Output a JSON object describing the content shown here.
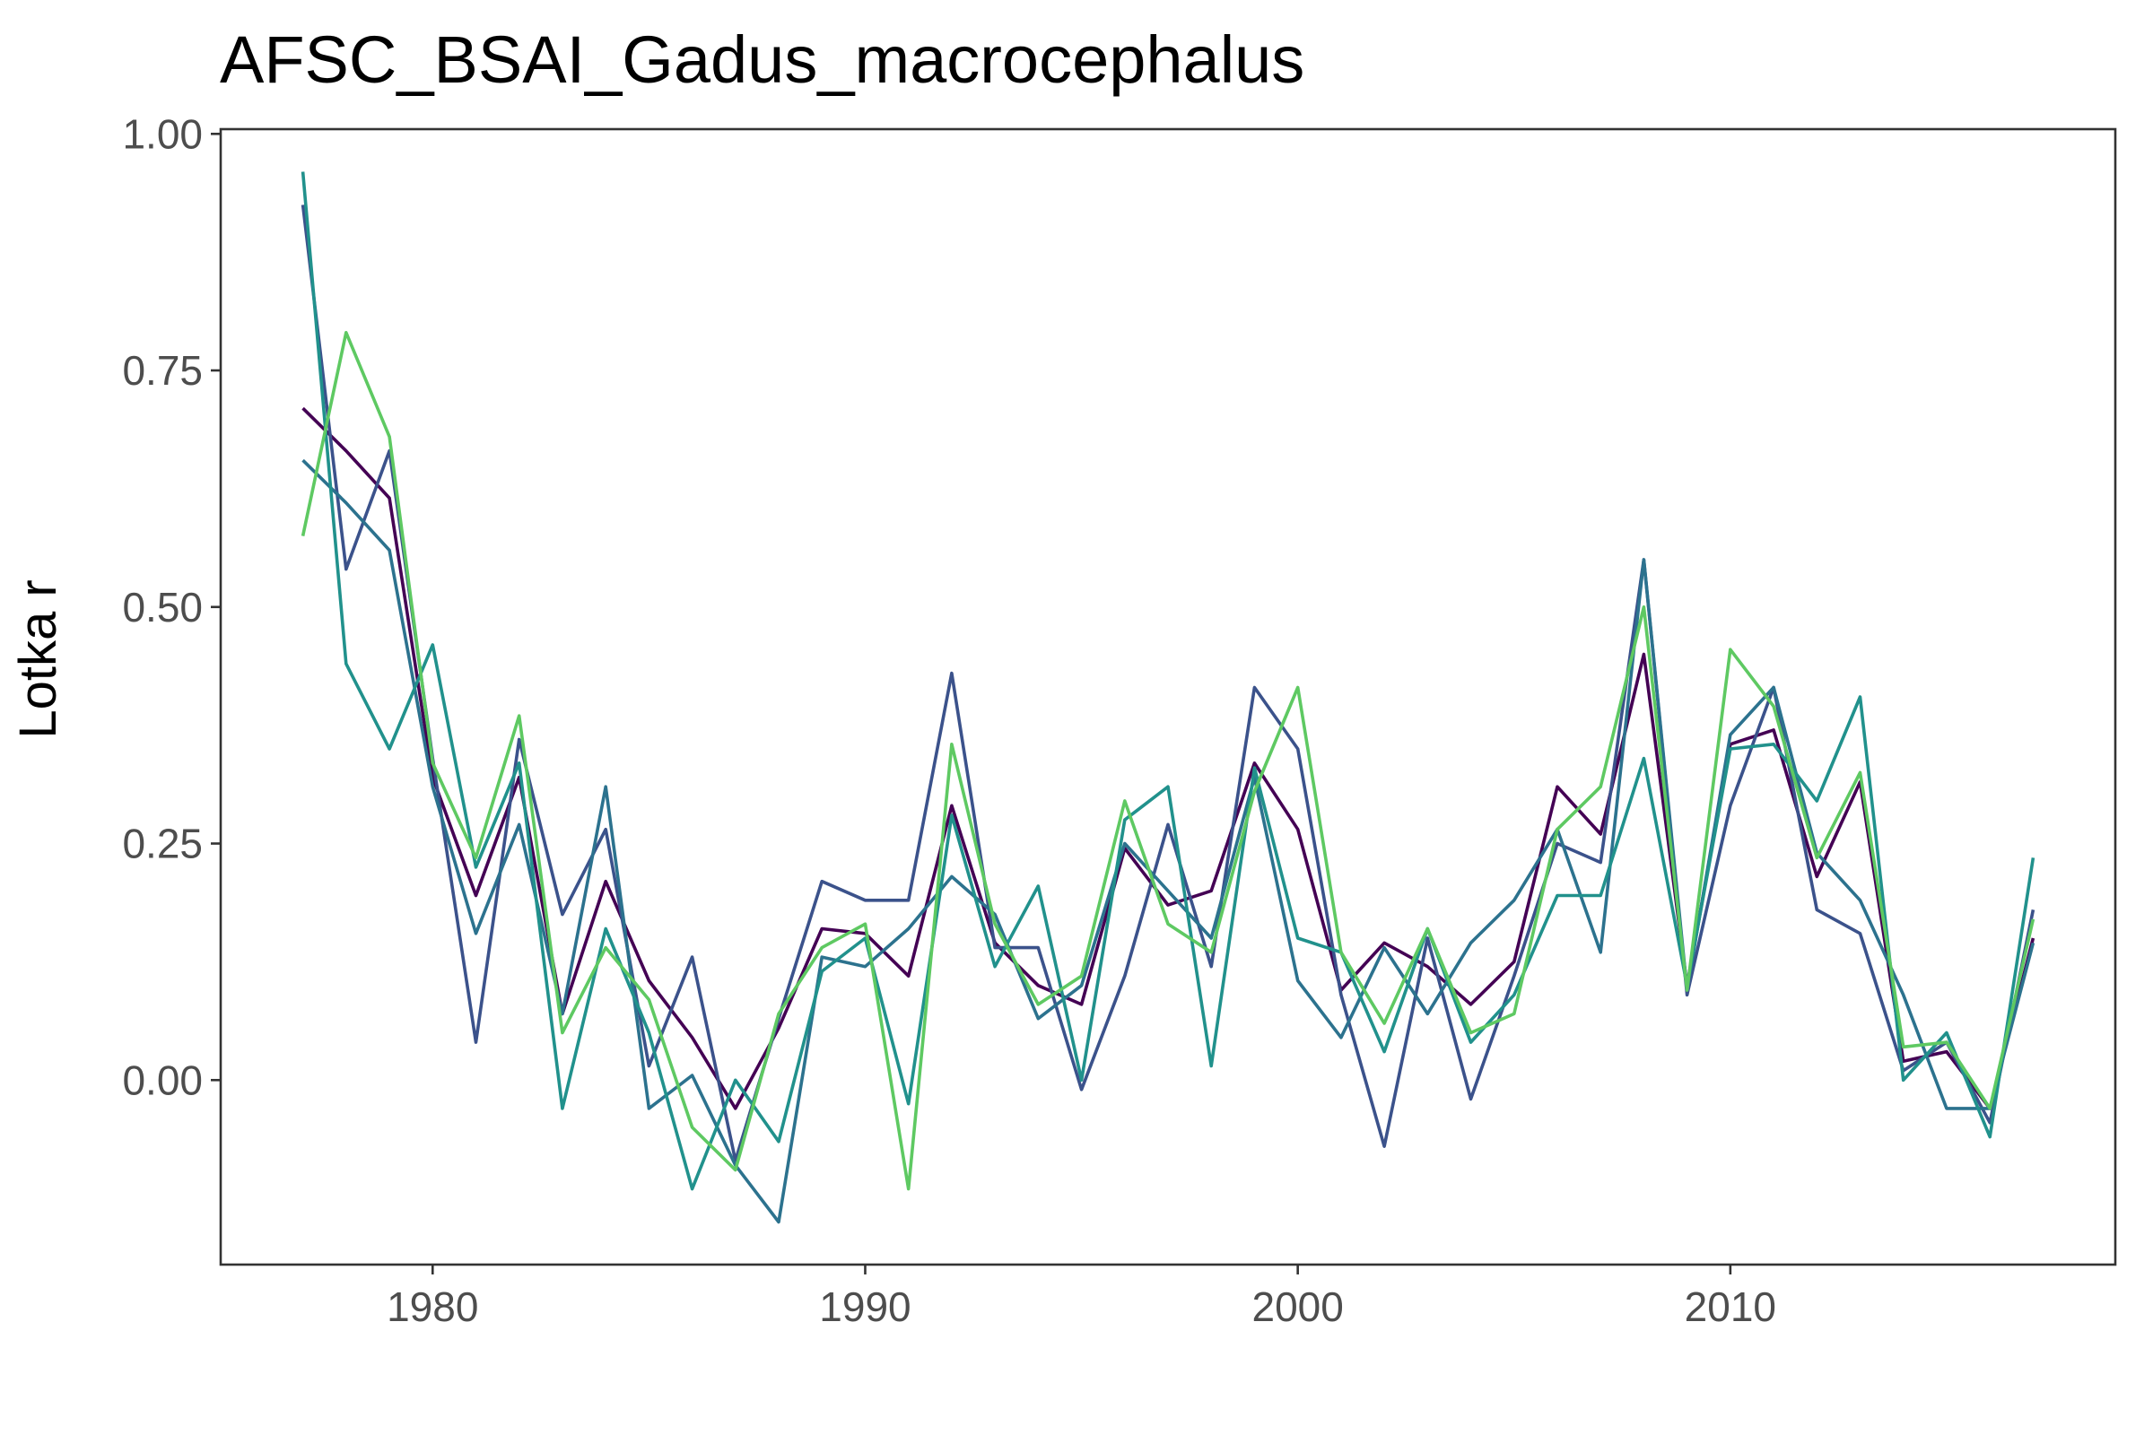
{
  "chart_data": {
    "type": "line",
    "title": "AFSC_BSAI_Gadus_macrocephalus",
    "xlabel": "",
    "ylabel": "Lotka r",
    "xlim": [
      1975.1,
      2018.9
    ],
    "ylim": [
      -0.195,
      1.005
    ],
    "x_ticks": [
      1980,
      1990,
      2000,
      2010
    ],
    "x_tick_labels": [
      "1980",
      "1990",
      "2000",
      "2010"
    ],
    "y_ticks": [
      0.0,
      0.25,
      0.5,
      0.75,
      1.0
    ],
    "y_tick_labels": [
      "0.00",
      "0.25",
      "0.50",
      "0.75",
      "1.00"
    ],
    "grid": false,
    "legend": "none",
    "x": [
      1977,
      1978,
      1979,
      1980,
      1981,
      1982,
      1983,
      1984,
      1985,
      1986,
      1987,
      1988,
      1989,
      1990,
      1991,
      1992,
      1993,
      1994,
      1995,
      1996,
      1997,
      1998,
      1999,
      2000,
      2001,
      2002,
      2003,
      2004,
      2005,
      2006,
      2007,
      2008,
      2009,
      2010,
      2011,
      2012,
      2013,
      2014,
      2015,
      2016,
      2017
    ],
    "series": [
      {
        "color": "#440154",
        "values": [
          0.71,
          0.665,
          0.615,
          0.32,
          0.195,
          0.32,
          0.07,
          0.21,
          0.105,
          0.045,
          -0.03,
          0.055,
          0.16,
          0.155,
          0.11,
          0.29,
          0.145,
          0.1,
          0.08,
          0.245,
          0.185,
          0.2,
          0.335,
          0.265,
          0.095,
          0.145,
          0.12,
          0.08,
          0.125,
          0.31,
          0.26,
          0.45,
          0.1,
          0.355,
          0.37,
          0.215,
          0.315,
          0.02,
          0.03,
          -0.03,
          0.15
        ]
      },
      {
        "color": "#3b528b",
        "values": [
          0.925,
          0.54,
          0.665,
          0.34,
          0.04,
          0.36,
          0.175,
          0.265,
          0.015,
          0.13,
          -0.085,
          0.065,
          0.21,
          0.19,
          0.19,
          0.43,
          0.14,
          0.14,
          -0.01,
          0.11,
          0.27,
          0.12,
          0.415,
          0.35,
          0.09,
          -0.07,
          0.15,
          -0.02,
          0.11,
          0.25,
          0.23,
          0.55,
          0.09,
          0.29,
          0.415,
          0.18,
          0.155,
          0.01,
          0.04,
          -0.045,
          0.18
        ]
      },
      {
        "color": "#2c728e",
        "values": [
          0.655,
          0.61,
          0.56,
          0.31,
          0.155,
          0.27,
          0.07,
          0.31,
          -0.03,
          0.005,
          -0.09,
          -0.15,
          0.13,
          0.12,
          0.16,
          0.215,
          0.175,
          0.065,
          0.1,
          0.25,
          0.2,
          0.15,
          0.32,
          0.105,
          0.045,
          0.14,
          0.07,
          0.145,
          0.19,
          0.265,
          0.135,
          0.55,
          0.095,
          0.365,
          0.415,
          0.24,
          0.19,
          0.09,
          -0.03,
          -0.03,
          0.145
        ]
      },
      {
        "color": "#21918c",
        "values": [
          0.96,
          0.44,
          0.35,
          0.46,
          0.225,
          0.335,
          -0.03,
          0.16,
          0.05,
          -0.115,
          0.0,
          -0.065,
          0.115,
          0.15,
          -0.025,
          0.28,
          0.12,
          0.205,
          0.0,
          0.275,
          0.31,
          0.015,
          0.33,
          0.15,
          0.135,
          0.03,
          0.16,
          0.04,
          0.09,
          0.195,
          0.195,
          0.34,
          0.1,
          0.35,
          0.355,
          0.295,
          0.405,
          0.0,
          0.05,
          -0.06,
          0.235
        ]
      },
      {
        "color": "#5ec962",
        "values": [
          0.575,
          0.79,
          0.68,
          0.335,
          0.235,
          0.385,
          0.05,
          0.14,
          0.085,
          -0.05,
          -0.095,
          0.07,
          0.14,
          0.165,
          -0.115,
          0.355,
          0.165,
          0.08,
          0.11,
          0.295,
          0.165,
          0.135,
          0.305,
          0.415,
          0.135,
          0.06,
          0.16,
          0.05,
          0.07,
          0.265,
          0.31,
          0.5,
          0.095,
          0.455,
          0.395,
          0.235,
          0.325,
          0.035,
          0.04,
          -0.03,
          0.17
        ]
      }
    ]
  }
}
